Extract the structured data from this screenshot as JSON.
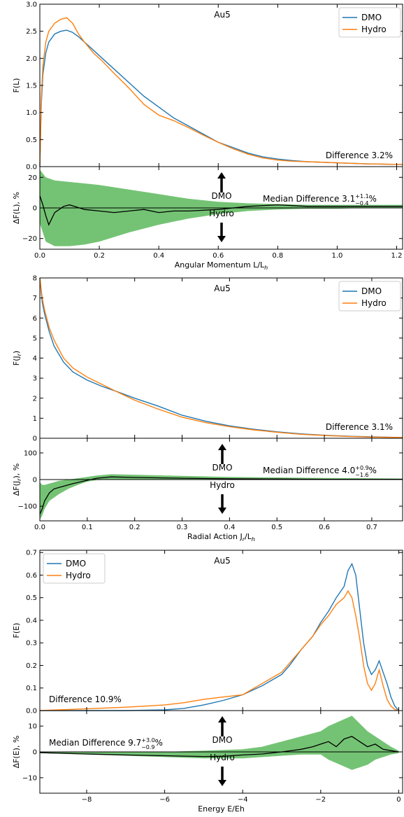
{
  "colors": {
    "dmo": "#1f77b4",
    "hydro": "#ff7f0e",
    "band": "#5cb85c",
    "median": "#000000"
  },
  "chart_data": [
    {
      "type": "line",
      "title": "Au5",
      "xlabel": "",
      "ylabel": "F(L)",
      "xlim": [
        0,
        1.22
      ],
      "ylim": [
        0,
        3.0
      ],
      "xticks": [
        "0.0",
        "0.2",
        "0.4",
        "0.6",
        "0.8",
        "1.0",
        "1.2"
      ],
      "yticks": [
        "0.0",
        "0.5",
        "1.0",
        "1.5",
        "2.0",
        "2.5",
        "3.0"
      ],
      "legend": "top-right",
      "annotation": "Difference 3.2%",
      "series": [
        {
          "name": "DMO",
          "x": [
            0,
            0.005,
            0.01,
            0.02,
            0.03,
            0.05,
            0.07,
            0.09,
            0.11,
            0.13,
            0.15,
            0.18,
            0.21,
            0.25,
            0.3,
            0.35,
            0.4,
            0.45,
            0.5,
            0.55,
            0.6,
            0.65,
            0.7,
            0.75,
            0.8,
            0.85,
            0.9,
            1.0,
            1.1,
            1.22
          ],
          "y": [
            0,
            1.15,
            1.7,
            2.1,
            2.3,
            2.45,
            2.5,
            2.52,
            2.48,
            2.4,
            2.3,
            2.15,
            2.0,
            1.8,
            1.55,
            1.3,
            1.1,
            0.9,
            0.75,
            0.6,
            0.45,
            0.35,
            0.25,
            0.18,
            0.14,
            0.11,
            0.09,
            0.07,
            0.05,
            0.04
          ]
        },
        {
          "name": "Hydro",
          "x": [
            0,
            0.005,
            0.01,
            0.02,
            0.03,
            0.05,
            0.07,
            0.09,
            0.11,
            0.13,
            0.15,
            0.18,
            0.21,
            0.25,
            0.3,
            0.35,
            0.4,
            0.45,
            0.5,
            0.55,
            0.6,
            0.65,
            0.7,
            0.75,
            0.8,
            0.85,
            0.9,
            1.0,
            1.1,
            1.22
          ],
          "y": [
            0,
            1.25,
            1.85,
            2.3,
            2.5,
            2.65,
            2.72,
            2.75,
            2.65,
            2.45,
            2.3,
            2.1,
            1.95,
            1.72,
            1.45,
            1.15,
            0.95,
            0.85,
            0.72,
            0.58,
            0.45,
            0.33,
            0.23,
            0.16,
            0.12,
            0.1,
            0.09,
            0.07,
            0.05,
            0.04
          ]
        }
      ]
    },
    {
      "type": "area",
      "xlabel": "Angular Momentum L/L_h",
      "ylabel": "ΔF(L), %",
      "xlim": [
        0,
        1.22
      ],
      "ylim": [
        -27,
        27
      ],
      "xticks": [
        "0.0",
        "0.2",
        "0.4",
        "0.6",
        "0.8",
        "1.0",
        "1.2"
      ],
      "yticks": [
        "−20",
        "0",
        "20"
      ],
      "annotation": "Median Difference 3.1",
      "annotation_sup": "+1.1",
      "annotation_sub": "−0.4",
      "arrow_up_label": "DMO",
      "arrow_down_label": "Hydro",
      "band": {
        "x": [
          0,
          0.02,
          0.05,
          0.1,
          0.15,
          0.2,
          0.3,
          0.4,
          0.5,
          0.6,
          0.7,
          0.8,
          0.9,
          1.0,
          1.1,
          1.22
        ],
        "upper": [
          25,
          20,
          18,
          17,
          16,
          15,
          12,
          9,
          6,
          4,
          3,
          2.5,
          2,
          2,
          2,
          2
        ],
        "lower": [
          -10,
          -22,
          -25,
          -25,
          -24,
          -22,
          -16,
          -11,
          -7,
          -4,
          -2,
          -1,
          -0.5,
          -0.5,
          0,
          0
        ]
      },
      "median": {
        "x": [
          0,
          0.01,
          0.02,
          0.03,
          0.05,
          0.08,
          0.1,
          0.15,
          0.2,
          0.25,
          0.3,
          0.35,
          0.4,
          0.45,
          0.5,
          0.6,
          0.7,
          0.8,
          0.9,
          1.0,
          1.1,
          1.22
        ],
        "y": [
          8,
          2,
          -5,
          -11,
          -3,
          1,
          2,
          -1,
          -2,
          -3,
          -2,
          -1,
          -3,
          -2,
          -2,
          -1,
          1,
          2,
          1,
          1,
          1,
          1
        ]
      }
    },
    {
      "type": "line",
      "title": "Au5",
      "xlabel": "",
      "ylabel": "F(J_r)",
      "xlim": [
        0,
        0.765
      ],
      "ylim": [
        0,
        8
      ],
      "xticks": [
        "0.0",
        "0.1",
        "0.2",
        "0.3",
        "0.4",
        "0.5",
        "0.6",
        "0.7"
      ],
      "yticks": [
        "0",
        "1",
        "2",
        "3",
        "4",
        "5",
        "6",
        "7",
        "8"
      ],
      "legend": "top-right",
      "annotation": "Difference 3.1%",
      "series": [
        {
          "name": "DMO",
          "x": [
            0,
            0.005,
            0.01,
            0.02,
            0.03,
            0.05,
            0.07,
            0.1,
            0.13,
            0.16,
            0.2,
            0.25,
            0.3,
            0.35,
            0.4,
            0.45,
            0.5,
            0.55,
            0.6,
            0.65,
            0.7,
            0.765
          ],
          "y": [
            8,
            6.8,
            6.2,
            5.3,
            4.6,
            3.8,
            3.3,
            2.9,
            2.6,
            2.35,
            2.0,
            1.6,
            1.15,
            0.85,
            0.62,
            0.45,
            0.32,
            0.22,
            0.15,
            0.1,
            0.07,
            0.04
          ]
        },
        {
          "name": "Hydro",
          "x": [
            0,
            0.005,
            0.01,
            0.02,
            0.03,
            0.05,
            0.07,
            0.1,
            0.13,
            0.16,
            0.2,
            0.25,
            0.3,
            0.35,
            0.4,
            0.45,
            0.5,
            0.55,
            0.6,
            0.65,
            0.7,
            0.765
          ],
          "y": [
            8,
            7.0,
            6.4,
            5.5,
            4.9,
            4.0,
            3.5,
            3.05,
            2.7,
            2.35,
            1.9,
            1.45,
            1.05,
            0.78,
            0.58,
            0.42,
            0.3,
            0.2,
            0.14,
            0.09,
            0.06,
            0.04
          ]
        }
      ]
    },
    {
      "type": "area",
      "xlabel": "Radial Action J_r/L_h",
      "ylabel": "ΔF(J_r), %",
      "xlim": [
        0,
        0.765
      ],
      "ylim": [
        -155,
        155
      ],
      "xticks": [
        "0.0",
        "0.1",
        "0.2",
        "0.3",
        "0.4",
        "0.5",
        "0.6",
        "0.7"
      ],
      "yticks": [
        "−100",
        "0",
        "100"
      ],
      "annotation": "Median Difference 4.0",
      "annotation_sup": "+0.9",
      "annotation_sub": "−1.6",
      "arrow_up_label": "DMO",
      "arrow_down_label": "Hydro",
      "band": {
        "x": [
          0,
          0.005,
          0.01,
          0.02,
          0.04,
          0.06,
          0.08,
          0.1,
          0.12,
          0.15,
          0.2,
          0.3,
          0.4,
          0.5,
          0.6,
          0.765
        ],
        "upper": [
          -10,
          -20,
          -20,
          -15,
          -5,
          0,
          5,
          10,
          15,
          20,
          18,
          14,
          10,
          8,
          6,
          4
        ],
        "lower": [
          -150,
          -135,
          -110,
          -80,
          -55,
          -35,
          -20,
          -8,
          -2,
          0,
          0,
          0,
          0,
          0,
          0,
          0
        ]
      },
      "median": {
        "x": [
          0,
          0.005,
          0.01,
          0.02,
          0.03,
          0.05,
          0.07,
          0.1,
          0.12,
          0.15,
          0.2,
          0.3,
          0.4,
          0.5,
          0.6,
          0.765
        ],
        "y": [
          -130,
          -110,
          -80,
          -50,
          -35,
          -25,
          -15,
          -3,
          5,
          10,
          8,
          5,
          3,
          2,
          1,
          1
        ]
      }
    },
    {
      "type": "line",
      "title": "Au5",
      "xlabel": "",
      "ylabel": "F(E)",
      "xlim": [
        -9.2,
        0.1
      ],
      "ylim": [
        0,
        0.71
      ],
      "xticks": [
        "−8",
        "−6",
        "−4",
        "−2",
        "0"
      ],
      "yticks": [
        "0.0",
        "0.1",
        "0.2",
        "0.3",
        "0.4",
        "0.5",
        "0.6",
        "0.7"
      ],
      "legend": "top-left",
      "annotation": "Difference 10.9%",
      "series": [
        {
          "name": "DMO",
          "x": [
            -9.2,
            -7,
            -6,
            -5.5,
            -5,
            -4.5,
            -4,
            -3.5,
            -3,
            -2.8,
            -2.5,
            -2.2,
            -2,
            -1.8,
            -1.6,
            -1.4,
            -1.3,
            -1.2,
            -1.1,
            -1.0,
            -0.9,
            -0.8,
            -0.7,
            -0.6,
            -0.5,
            -0.4,
            -0.3,
            -0.2,
            -0.1,
            0
          ],
          "y": [
            0,
            0,
            0.003,
            0.01,
            0.025,
            0.045,
            0.07,
            0.11,
            0.16,
            0.2,
            0.27,
            0.33,
            0.39,
            0.44,
            0.5,
            0.55,
            0.62,
            0.65,
            0.6,
            0.45,
            0.3,
            0.2,
            0.16,
            0.18,
            0.22,
            0.17,
            0.12,
            0.06,
            0.02,
            0
          ]
        },
        {
          "name": "Hydro",
          "x": [
            -9.2,
            -8,
            -7,
            -6,
            -5.5,
            -5,
            -4.5,
            -4,
            -3.5,
            -3,
            -2.8,
            -2.5,
            -2.2,
            -2,
            -1.8,
            -1.6,
            -1.4,
            -1.3,
            -1.2,
            -1.1,
            -1.0,
            -0.9,
            -0.8,
            -0.7,
            -0.6,
            -0.5,
            -0.4,
            -0.3,
            -0.2,
            -0.1,
            0
          ],
          "y": [
            0,
            0.008,
            0.015,
            0.025,
            0.035,
            0.05,
            0.06,
            0.07,
            0.12,
            0.17,
            0.21,
            0.27,
            0.33,
            0.38,
            0.42,
            0.47,
            0.5,
            0.53,
            0.5,
            0.42,
            0.32,
            0.2,
            0.12,
            0.09,
            0.12,
            0.18,
            0.11,
            0.05,
            0.02,
            0.005,
            0
          ]
        }
      ]
    },
    {
      "type": "area",
      "xlabel": "Energy E/Eh",
      "ylabel": "ΔF(E), %",
      "xlim": [
        -9.2,
        0.1
      ],
      "ylim": [
        -16,
        16
      ],
      "xticks": [
        "−8",
        "−6",
        "−4",
        "−2",
        "0"
      ],
      "yticks": [
        "−10",
        "0",
        "10"
      ],
      "annotation": "Median Difference 9.7",
      "annotation_sup": "+3.0",
      "annotation_sub": "−0.9",
      "arrow_up_label": "DMO",
      "arrow_down_label": "Hydro",
      "band": {
        "x": [
          -9.2,
          -8,
          -7,
          -6,
          -5,
          -4,
          -3.5,
          -3,
          -2.5,
          -2,
          -1.8,
          -1.5,
          -1.2,
          -1.0,
          -0.8,
          -0.6,
          -0.4,
          -0.2,
          0
        ],
        "upper": [
          0,
          0,
          0,
          0,
          0.5,
          1,
          2,
          4,
          6,
          8,
          10,
          12,
          14,
          11,
          8,
          6,
          4,
          2,
          0.5
        ],
        "lower": [
          -0.5,
          -1,
          -1.5,
          -2,
          -2.5,
          -2.5,
          -2,
          -1.5,
          -1,
          -1,
          -3,
          -5,
          -7,
          -6,
          -5,
          -3,
          -2,
          -1,
          -0.5
        ]
      },
      "median": {
        "x": [
          -9.2,
          -8,
          -7,
          -6,
          -5,
          -4.5,
          -4,
          -3.5,
          -3,
          -2.5,
          -2.2,
          -2,
          -1.8,
          -1.6,
          -1.4,
          -1.2,
          -1.0,
          -0.8,
          -0.6,
          -0.4,
          -0.2,
          0
        ],
        "y": [
          -0.3,
          -0.8,
          -1.2,
          -1.5,
          -1.8,
          -1.7,
          -1.2,
          -0.8,
          0,
          1,
          2,
          3,
          4,
          2,
          5,
          6,
          4,
          2,
          3,
          1,
          0.5,
          0
        ]
      }
    }
  ]
}
